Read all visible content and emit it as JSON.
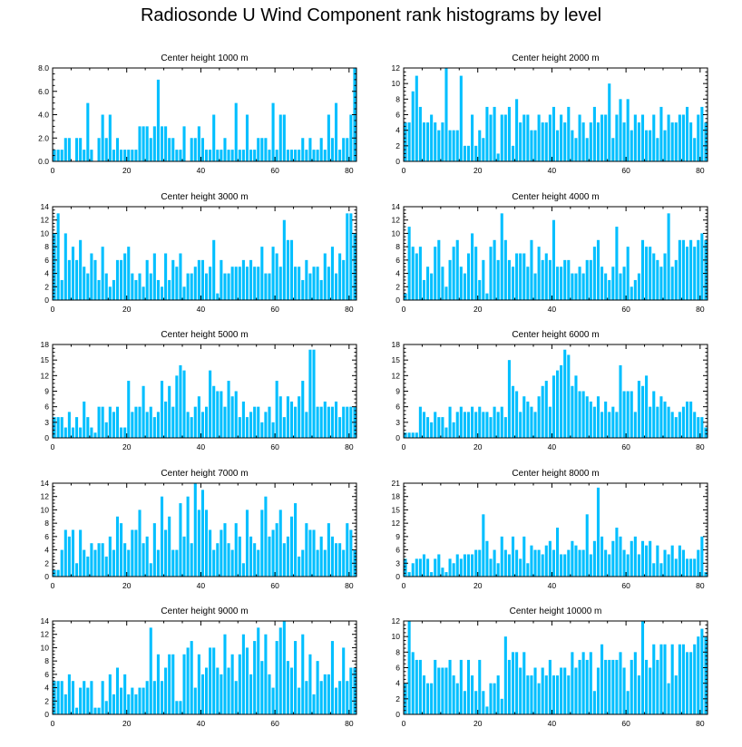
{
  "title": "Radiosonde U Wind Component rank histograms by level",
  "colors": {
    "bar": "#00bfff",
    "axis": "#000000"
  },
  "x_ticks": [
    0,
    20,
    40,
    60,
    80
  ],
  "chart_data": [
    {
      "type": "bar",
      "title": "Center height 1000 m",
      "xlim": [
        0,
        82
      ],
      "ylim": [
        0,
        8
      ],
      "yticks": [
        "0.0",
        "2.0",
        "4.0",
        "6.0",
        "8.0"
      ],
      "values": [
        1,
        1,
        1,
        2,
        2,
        0,
        2,
        2,
        1,
        5,
        1,
        0,
        2,
        4,
        2,
        4,
        1,
        2,
        1,
        1,
        1,
        1,
        1,
        3,
        3,
        3,
        2,
        3,
        7,
        3,
        3,
        2,
        2,
        1,
        1,
        3,
        0,
        2,
        2,
        3,
        2,
        1,
        1,
        4,
        1,
        1,
        2,
        1,
        1,
        5,
        1,
        1,
        4,
        1,
        1,
        2,
        2,
        2,
        1,
        5,
        1,
        4,
        4,
        1,
        1,
        1,
        1,
        2,
        1,
        2,
        1,
        1,
        2,
        1,
        4,
        2,
        5,
        1,
        2,
        2,
        4,
        8
      ]
    },
    {
      "type": "bar",
      "title": "Center height 2000 m",
      "xlim": [
        0,
        82
      ],
      "ylim": [
        0,
        12
      ],
      "yticks": [
        "0",
        "2",
        "4",
        "6",
        "8",
        "10",
        "12"
      ],
      "values": [
        5,
        5,
        9,
        11,
        7,
        5,
        5,
        6,
        5,
        4,
        5,
        12,
        4,
        4,
        4,
        11,
        2,
        2,
        6,
        2,
        4,
        3,
        7,
        6,
        7,
        1,
        6,
        6,
        7,
        2,
        8,
        5,
        6,
        6,
        4,
        4,
        6,
        5,
        5,
        6,
        7,
        4,
        6,
        5,
        7,
        4,
        3,
        6,
        5,
        3,
        5,
        7,
        5,
        6,
        6,
        10,
        3,
        6,
        8,
        5,
        8,
        4,
        6,
        5,
        6,
        4,
        4,
        6,
        3,
        7,
        4,
        6,
        5,
        5,
        6,
        6,
        7,
        5,
        3,
        6,
        7,
        5
      ]
    },
    {
      "type": "bar",
      "title": "Center height 3000 m",
      "xlim": [
        0,
        82
      ],
      "ylim": [
        0,
        14
      ],
      "yticks": [
        "0",
        "2",
        "4",
        "6",
        "8",
        "10",
        "12",
        "14"
      ],
      "values": [
        10,
        13,
        3,
        10,
        6,
        8,
        6,
        9,
        5,
        4,
        7,
        6,
        3,
        8,
        4,
        2,
        3,
        6,
        6,
        7,
        8,
        4,
        3,
        4,
        2,
        6,
        4,
        7,
        3,
        2,
        7,
        3,
        6,
        5,
        7,
        2,
        4,
        4,
        5,
        6,
        6,
        4,
        5,
        9,
        1,
        6,
        4,
        4,
        5,
        5,
        5,
        6,
        5,
        6,
        5,
        5,
        8,
        4,
        4,
        8,
        7,
        5,
        12,
        9,
        9,
        5,
        5,
        3,
        6,
        4,
        5,
        5,
        3,
        7,
        5,
        8,
        4,
        7,
        6,
        13,
        13,
        10
      ]
    },
    {
      "type": "bar",
      "title": "Center height 4000 m",
      "xlim": [
        0,
        82
      ],
      "ylim": [
        0,
        14
      ],
      "yticks": [
        "0",
        "2",
        "4",
        "6",
        "8",
        "10",
        "12",
        "14"
      ],
      "values": [
        1,
        11,
        8,
        7,
        8,
        3,
        5,
        4,
        8,
        9,
        5,
        2,
        6,
        8,
        9,
        5,
        4,
        7,
        10,
        8,
        3,
        6,
        1,
        8,
        9,
        6,
        13,
        9,
        6,
        5,
        7,
        7,
        7,
        5,
        9,
        4,
        8,
        6,
        7,
        6,
        12,
        5,
        5,
        6,
        6,
        4,
        4,
        5,
        4,
        6,
        6,
        8,
        9,
        5,
        4,
        3,
        5,
        11,
        4,
        5,
        8,
        2,
        3,
        4,
        9,
        8,
        8,
        7,
        6,
        5,
        7,
        13,
        5,
        6,
        9,
        9,
        8,
        9,
        8,
        9,
        10,
        9
      ]
    },
    {
      "type": "bar",
      "title": "Center height 5000 m",
      "xlim": [
        0,
        82
      ],
      "ylim": [
        0,
        18
      ],
      "yticks": [
        "0",
        "3",
        "6",
        "9",
        "12",
        "15",
        "18"
      ],
      "values": [
        4,
        4,
        4,
        2,
        5,
        2,
        4,
        2,
        7,
        4,
        2,
        1,
        6,
        6,
        3,
        6,
        5,
        6,
        2,
        2,
        11,
        5,
        6,
        6,
        10,
        5,
        6,
        4,
        5,
        11,
        7,
        10,
        6,
        12,
        14,
        13,
        5,
        4,
        6,
        8,
        5,
        6,
        13,
        10,
        9,
        9,
        6,
        11,
        8,
        9,
        4,
        7,
        4,
        5,
        6,
        6,
        3,
        5,
        6,
        3,
        11,
        8,
        4,
        8,
        7,
        6,
        8,
        11,
        5,
        17,
        17,
        6,
        6,
        7,
        6,
        6,
        7,
        4,
        6,
        6,
        6,
        6
      ]
    },
    {
      "type": "bar",
      "title": "Center height 6000 m",
      "xlim": [
        0,
        82
      ],
      "ylim": [
        0,
        18
      ],
      "yticks": [
        "0",
        "3",
        "6",
        "9",
        "12",
        "15",
        "18"
      ],
      "values": [
        1,
        1,
        1,
        1,
        6,
        5,
        4,
        3,
        5,
        4,
        4,
        2,
        6,
        3,
        5,
        6,
        5,
        5,
        6,
        5,
        6,
        5,
        5,
        4,
        6,
        5,
        6,
        4,
        15,
        10,
        9,
        5,
        8,
        7,
        6,
        5,
        8,
        10,
        11,
        6,
        12,
        13,
        14,
        17,
        16,
        10,
        12,
        9,
        9,
        8,
        7,
        6,
        8,
        5,
        7,
        5,
        6,
        5,
        14,
        9,
        9,
        9,
        5,
        11,
        10,
        12,
        6,
        9,
        6,
        8,
        7,
        6,
        5,
        4,
        5,
        6,
        7,
        7,
        5,
        4,
        4,
        2
      ]
    },
    {
      "type": "bar",
      "title": "Center height 7000 m",
      "xlim": [
        0,
        82
      ],
      "ylim": [
        0,
        14
      ],
      "yticks": [
        "0",
        "2",
        "4",
        "6",
        "8",
        "10",
        "12",
        "14"
      ],
      "values": [
        1,
        1,
        4,
        7,
        6,
        7,
        2,
        7,
        4,
        3,
        5,
        4,
        5,
        5,
        3,
        6,
        4,
        9,
        8,
        5,
        4,
        7,
        7,
        10,
        5,
        6,
        2,
        8,
        4,
        12,
        7,
        9,
        4,
        4,
        11,
        6,
        12,
        5,
        14,
        10,
        13,
        10,
        7,
        4,
        5,
        7,
        8,
        5,
        4,
        8,
        6,
        2,
        10,
        6,
        5,
        4,
        10,
        12,
        6,
        7,
        8,
        10,
        5,
        6,
        9,
        11,
        3,
        4,
        8,
        7,
        7,
        4,
        6,
        4,
        8,
        6,
        5,
        5,
        4,
        8,
        7,
        4
      ]
    },
    {
      "type": "bar",
      "title": "Center height 8000 m",
      "xlim": [
        0,
        82
      ],
      "ylim": [
        0,
        21
      ],
      "yticks": [
        "0",
        "3",
        "6",
        "9",
        "12",
        "15",
        "18",
        "21"
      ],
      "values": [
        4,
        1,
        3,
        4,
        4,
        5,
        4,
        1,
        4,
        5,
        2,
        1,
        4,
        3,
        5,
        4,
        5,
        5,
        5,
        6,
        6,
        14,
        8,
        4,
        6,
        3,
        9,
        6,
        5,
        9,
        6,
        4,
        9,
        3,
        7,
        6,
        6,
        5,
        7,
        8,
        6,
        11,
        5,
        5,
        6,
        8,
        7,
        6,
        6,
        14,
        5,
        8,
        20,
        9,
        6,
        5,
        8,
        11,
        9,
        6,
        5,
        8,
        9,
        5,
        8,
        7,
        8,
        3,
        7,
        3,
        6,
        5,
        7,
        4,
        7,
        6,
        4,
        4,
        4,
        6,
        9,
        1
      ]
    },
    {
      "type": "bar",
      "title": "Center height 9000 m",
      "xlim": [
        0,
        82
      ],
      "ylim": [
        0,
        14
      ],
      "yticks": [
        "0",
        "2",
        "4",
        "6",
        "8",
        "10",
        "12",
        "14"
      ],
      "values": [
        5,
        5,
        5,
        3,
        6,
        5,
        1,
        4,
        5,
        4,
        5,
        1,
        1,
        5,
        2,
        6,
        3,
        7,
        4,
        6,
        3,
        4,
        3,
        4,
        4,
        5,
        13,
        5,
        9,
        5,
        7,
        9,
        9,
        2,
        2,
        9,
        10,
        11,
        4,
        9,
        6,
        7,
        10,
        10,
        7,
        6,
        12,
        7,
        9,
        5,
        9,
        12,
        10,
        6,
        11,
        13,
        8,
        12,
        6,
        4,
        11,
        13,
        14,
        8,
        7,
        11,
        4,
        12,
        5,
        9,
        3,
        8,
        5,
        6,
        6,
        11,
        4,
        5,
        10,
        5,
        7,
        7
      ]
    },
    {
      "type": "bar",
      "title": "Center height 10000 m",
      "xlim": [
        0,
        82
      ],
      "ylim": [
        0,
        12
      ],
      "yticks": [
        "0",
        "2",
        "4",
        "6",
        "8",
        "10",
        "12"
      ],
      "values": [
        4,
        12,
        8,
        7,
        7,
        5,
        4,
        4,
        7,
        6,
        6,
        6,
        7,
        5,
        4,
        7,
        3,
        7,
        5,
        3,
        7,
        3,
        1,
        4,
        4,
        5,
        2,
        10,
        7,
        8,
        8,
        6,
        8,
        5,
        5,
        6,
        4,
        6,
        5,
        7,
        5,
        5,
        6,
        6,
        5,
        8,
        6,
        7,
        8,
        7,
        8,
        3,
        6,
        9,
        7,
        7,
        7,
        7,
        8,
        6,
        3,
        7,
        8,
        5,
        12,
        7,
        6,
        9,
        7,
        9,
        9,
        4,
        9,
        5,
        9,
        9,
        8,
        8,
        9,
        10,
        11,
        10
      ]
    }
  ]
}
